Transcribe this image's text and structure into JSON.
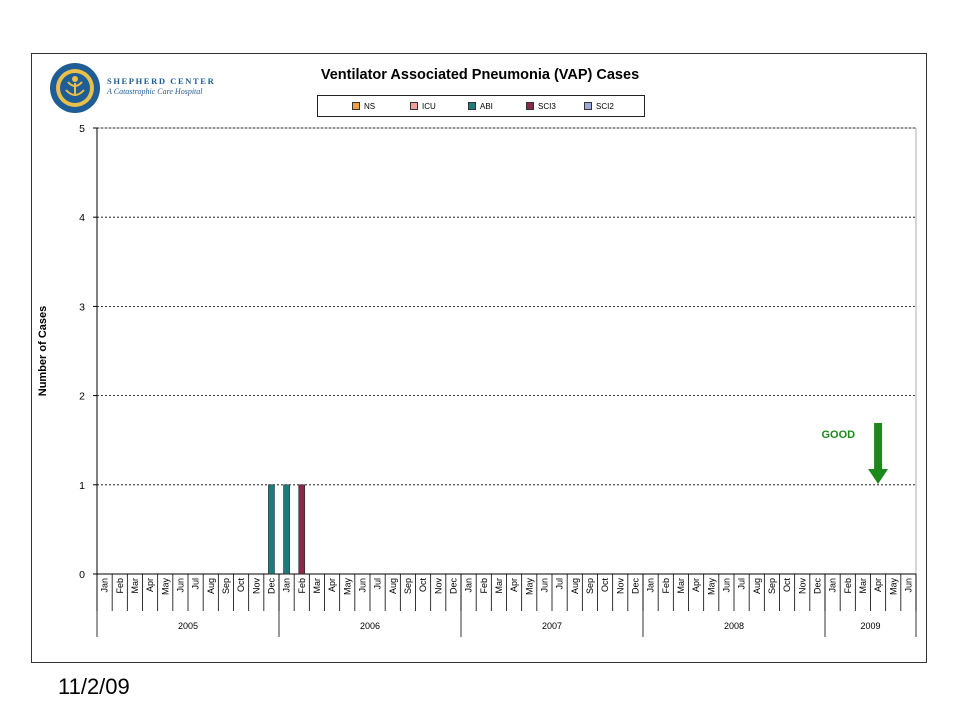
{
  "logo": {
    "name": "SHEPHERD CENTER",
    "tagline": "A Catastrophic Care Hospital"
  },
  "footer": {
    "date": "11/2/09"
  },
  "chart_data": {
    "type": "bar",
    "title": "Ventilator Associated Pneumonia (VAP) Cases",
    "xlabel": "",
    "ylabel": "Number of Cases",
    "ylim": [
      0,
      5
    ],
    "yticks": [
      "0",
      "1",
      "2",
      "3",
      "4",
      "5"
    ],
    "grid": true,
    "legend_position": "top",
    "categories": [
      "Jan",
      "Feb",
      "Mar",
      "Apr",
      "May",
      "Jun",
      "Jul",
      "Aug",
      "Sep",
      "Oct",
      "Nov",
      "Dec",
      "Jan",
      "Feb",
      "Mar",
      "Apr",
      "May",
      "Jun",
      "Jul",
      "Aug",
      "Sep",
      "Oct",
      "Nov",
      "Dec",
      "Jan",
      "Feb",
      "Mar",
      "Apr",
      "May",
      "Jun",
      "Jul",
      "Aug",
      "Sep",
      "Oct",
      "Nov",
      "Dec",
      "Jan",
      "Feb",
      "Mar",
      "Apr",
      "May",
      "Jun",
      "Jul",
      "Aug",
      "Sep",
      "Oct",
      "Nov",
      "Dec",
      "Jan",
      "Feb",
      "Mar",
      "Apr",
      "May",
      "Jun"
    ],
    "year_groups": [
      {
        "label": "2005",
        "count": 12
      },
      {
        "label": "2006",
        "count": 12
      },
      {
        "label": "2007",
        "count": 12
      },
      {
        "label": "2008",
        "count": 12
      },
      {
        "label": "2009",
        "count": 6
      }
    ],
    "series": [
      {
        "name": "NS",
        "color": "#f0a040",
        "values": [
          0,
          0,
          0,
          0,
          0,
          0,
          0,
          0,
          0,
          0,
          0,
          0,
          0,
          0,
          0,
          0,
          0,
          0,
          0,
          0,
          0,
          0,
          0,
          0,
          0,
          0,
          0,
          0,
          0,
          0,
          0,
          0,
          0,
          0,
          0,
          0,
          0,
          0,
          0,
          0,
          0,
          0,
          0,
          0,
          0,
          0,
          0,
          0,
          0,
          0,
          0,
          0,
          0,
          0
        ]
      },
      {
        "name": "ICU",
        "color": "#f4a09a",
        "values": [
          0,
          0,
          0,
          0,
          0,
          0,
          0,
          0,
          0,
          0,
          0,
          0,
          0,
          0,
          0,
          0,
          0,
          0,
          0,
          0,
          0,
          0,
          0,
          0,
          0,
          0,
          0,
          0,
          0,
          0,
          0,
          0,
          0,
          0,
          0,
          0,
          0,
          0,
          0,
          0,
          0,
          0,
          0,
          0,
          0,
          0,
          0,
          0,
          0,
          0,
          0,
          0,
          0,
          0
        ]
      },
      {
        "name": "ABI",
        "color": "#1f7b7b",
        "values": [
          0,
          0,
          0,
          0,
          0,
          0,
          0,
          0,
          0,
          0,
          0,
          1,
          1,
          0,
          0,
          0,
          0,
          0,
          0,
          0,
          0,
          0,
          0,
          0,
          0,
          0,
          0,
          0,
          0,
          0,
          0,
          0,
          0,
          0,
          0,
          0,
          0,
          0,
          0,
          0,
          0,
          0,
          0,
          0,
          0,
          0,
          0,
          0,
          0,
          0,
          0,
          0,
          0,
          0
        ]
      },
      {
        "name": "SCI3",
        "color": "#8a2a4a",
        "values": [
          0,
          0,
          0,
          0,
          0,
          0,
          0,
          0,
          0,
          0,
          0,
          0,
          0,
          1,
          0,
          0,
          0,
          0,
          0,
          0,
          0,
          0,
          0,
          0,
          0,
          0,
          0,
          0,
          0,
          0,
          0,
          0,
          0,
          0,
          0,
          0,
          0,
          0,
          0,
          0,
          0,
          0,
          0,
          0,
          0,
          0,
          0,
          0,
          0,
          0,
          0,
          0,
          0,
          0
        ]
      },
      {
        "name": "SCI2",
        "color": "#9aa8e0",
        "values": [
          0,
          0,
          0,
          0,
          0,
          0,
          0,
          0,
          0,
          0,
          0,
          0,
          0,
          0,
          0,
          0,
          0,
          0,
          0,
          0,
          0,
          0,
          0,
          0,
          0,
          0,
          0,
          0,
          0,
          0,
          0,
          0,
          0,
          0,
          0,
          0,
          0,
          0,
          0,
          0,
          0,
          0,
          0,
          0,
          0,
          0,
          0,
          0,
          0,
          0,
          0,
          0,
          0,
          0
        ]
      }
    ],
    "annotation": {
      "text": "GOOD",
      "color": "#1b8a1b",
      "category_index": 51,
      "direction": "down"
    }
  }
}
